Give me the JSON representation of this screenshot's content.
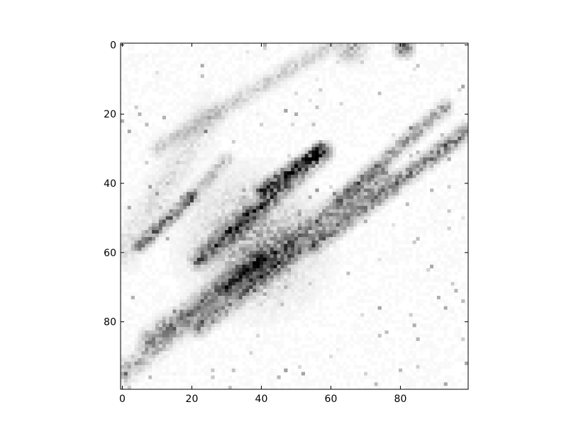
{
  "chart_data": {
    "type": "heatmap",
    "title": "",
    "xlabel": "",
    "ylabel": "",
    "colormap": "gray_r",
    "grid": false,
    "image_size": [
      100,
      100
    ],
    "xlim": [
      -0.5,
      99.5
    ],
    "ylim": [
      99.5,
      -0.5
    ],
    "x_axis": {
      "ticks": [
        0,
        20,
        40,
        60,
        80
      ],
      "tick_labels": [
        "0",
        "20",
        "40",
        "60",
        "80"
      ]
    },
    "y_axis": {
      "ticks": [
        0,
        20,
        40,
        60,
        80
      ],
      "tick_labels": [
        "0",
        "20",
        "40",
        "60",
        "80"
      ],
      "inverted": true
    },
    "background_level": 0.03,
    "features": [
      {
        "kind": "streak",
        "from": [
          5,
          58
        ],
        "to": [
          20,
          44
        ],
        "intensity": 0.6,
        "width": 1.2
      },
      {
        "kind": "streak",
        "from": [
          20,
          44
        ],
        "to": [
          30,
          33
        ],
        "intensity": 0.25,
        "width": 1.2
      },
      {
        "kind": "streak",
        "from": [
          22,
          62
        ],
        "to": [
          58,
          31
        ],
        "intensity": 0.65,
        "width": 1.6
      },
      {
        "kind": "streak",
        "from": [
          40,
          42
        ],
        "to": [
          57,
          30
        ],
        "intensity": 0.7,
        "width": 1.2
      },
      {
        "kind": "streak",
        "from": [
          30,
          70
        ],
        "to": [
          75,
          38
        ],
        "intensity": 0.45,
        "width": 2.0
      },
      {
        "kind": "streak",
        "from": [
          55,
          58
        ],
        "to": [
          99,
          25
        ],
        "intensity": 0.55,
        "width": 1.5
      },
      {
        "kind": "streak",
        "from": [
          62,
          45
        ],
        "to": [
          93,
          18
        ],
        "intensity": 0.45,
        "width": 1.3
      },
      {
        "kind": "streak",
        "from": [
          8,
          85
        ],
        "to": [
          40,
          62
        ],
        "intensity": 0.4,
        "width": 2.0
      },
      {
        "kind": "streak",
        "from": [
          22,
          82
        ],
        "to": [
          50,
          60
        ],
        "intensity": 0.45,
        "width": 1.5
      },
      {
        "kind": "streak",
        "from": [
          0,
          95
        ],
        "to": [
          25,
          75
        ],
        "intensity": 0.3,
        "width": 2.0
      },
      {
        "kind": "streak",
        "from": [
          10,
          30
        ],
        "to": [
          60,
          0
        ],
        "intensity": 0.2,
        "width": 1.5
      },
      {
        "kind": "streak",
        "from": [
          0,
          60
        ],
        "to": [
          25,
          20
        ],
        "intensity": 0.12,
        "width": 3.0
      },
      {
        "kind": "blob",
        "center": [
          38,
          57
        ],
        "radius": 10,
        "intensity": 0.4
      },
      {
        "kind": "blob",
        "center": [
          81,
          1
        ],
        "radius": 1.5,
        "intensity": 0.9
      },
      {
        "kind": "blob",
        "center": [
          66,
          1
        ],
        "radius": 2.5,
        "intensity": 0.35
      }
    ]
  }
}
